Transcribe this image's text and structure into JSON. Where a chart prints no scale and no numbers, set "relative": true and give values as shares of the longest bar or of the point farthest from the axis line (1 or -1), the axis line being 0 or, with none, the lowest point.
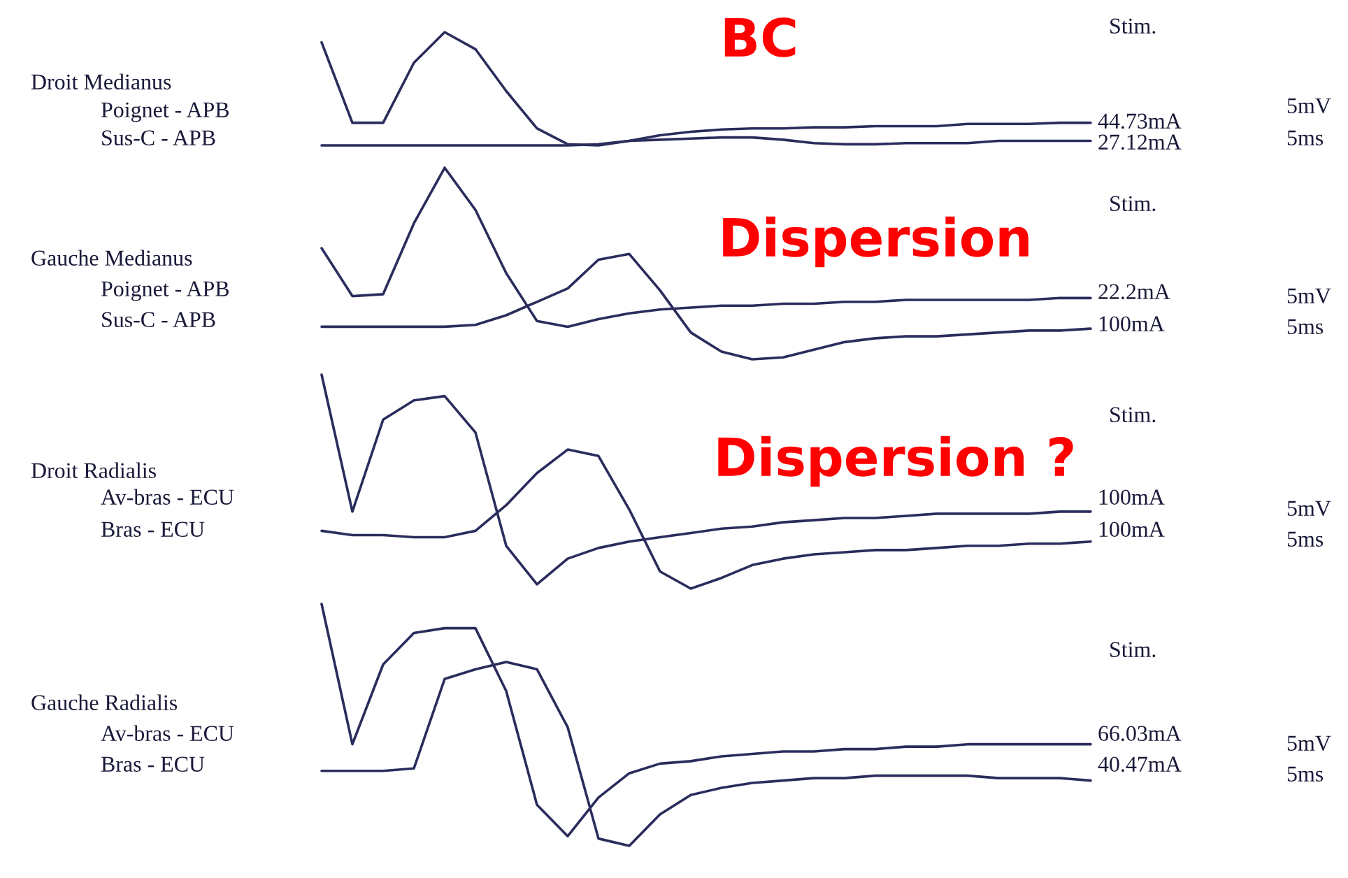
{
  "chart_data": [
    {
      "type": "line",
      "relative": true,
      "categories": [
        null,
        null,
        null,
        null,
        null,
        null,
        null,
        null,
        null,
        null,
        null,
        null,
        null,
        null,
        null,
        null,
        null,
        null,
        null,
        null,
        null,
        null,
        null,
        null,
        null,
        null
      ],
      "series": [
        {
          "color": "#2a2d5c",
          "values": [
            0.91,
            0.2,
            0.2,
            0.73,
            1,
            0.85,
            0.48,
            0.15,
            0.01,
            0,
            0.04,
            0.05,
            0.06,
            0.07,
            0.07,
            0.05,
            0.02,
            0.01,
            0.01,
            0.02,
            0.02,
            0.02,
            0.04,
            0.04,
            0.04,
            0.04
          ]
        },
        {
          "color": "#2a2d5c",
          "values": [
            0,
            0,
            0,
            0,
            0,
            0,
            0,
            0,
            0,
            0.01,
            0.04,
            0.09,
            0.12,
            0.14,
            0.15,
            0.15,
            0.16,
            0.16,
            0.17,
            0.17,
            0.17,
            0.19,
            0.19,
            0.19,
            0.2,
            0.2
          ]
        }
      ],
      "annotations": [
        "Droit Medianus",
        "Poignet - APB",
        "Sus-C - APB",
        "BC",
        "Stim.",
        "44.73mA",
        "27.12mA",
        "5mV",
        "5ms"
      ]
    },
    {
      "type": "line",
      "relative": true,
      "categories": [
        null,
        null,
        null,
        null,
        null,
        null,
        null,
        null,
        null,
        null,
        null,
        null,
        null,
        null,
        null,
        null,
        null,
        null,
        null,
        null,
        null,
        null,
        null,
        null,
        null,
        null
      ],
      "series": [
        {
          "color": "#2a2d5c",
          "values": [
            0.58,
            0.33,
            0.34,
            0.71,
            1,
            0.78,
            0.45,
            0.2,
            0.17,
            0.21,
            0.24,
            0.26,
            0.27,
            0.28,
            0.28,
            0.29,
            0.29,
            0.3,
            0.3,
            0.31,
            0.31,
            0.31,
            0.31,
            0.31,
            0.32,
            0.32
          ]
        },
        {
          "color": "#2a2d5c",
          "values": [
            0.17,
            0.17,
            0.17,
            0.17,
            0.17,
            0.18,
            0.23,
            0.3,
            0.37,
            0.52,
            0.55,
            0.36,
            0.14,
            0.04,
            0,
            0.01,
            0.05,
            0.09,
            0.11,
            0.12,
            0.12,
            0.13,
            0.14,
            0.15,
            0.15,
            0.16
          ]
        }
      ],
      "annotations": [
        "Gauche Medianus",
        "Poignet - APB",
        "Sus-C - APB",
        "Dispersion",
        "Stim.",
        "22.2mA",
        "100mA",
        "5mV",
        "5ms"
      ]
    },
    {
      "type": "line",
      "relative": true,
      "categories": [
        null,
        null,
        null,
        null,
        null,
        null,
        null,
        null,
        null,
        null,
        null,
        null,
        null,
        null,
        null,
        null,
        null,
        null,
        null,
        null,
        null,
        null,
        null,
        null,
        null,
        null
      ],
      "series": [
        {
          "color": "#2a2d5c",
          "values": [
            1,
            0.36,
            0.79,
            0.88,
            0.9,
            0.73,
            0.2,
            0.02,
            0.14,
            0.19,
            0.22,
            0.24,
            0.26,
            0.28,
            0.29,
            0.31,
            0.32,
            0.33,
            0.33,
            0.34,
            0.35,
            0.35,
            0.35,
            0.35,
            0.36,
            0.36
          ]
        },
        {
          "color": "#2a2d5c",
          "values": [
            0.27,
            0.25,
            0.25,
            0.24,
            0.24,
            0.27,
            0.39,
            0.54,
            0.65,
            0.62,
            0.37,
            0.08,
            0,
            0.05,
            0.11,
            0.14,
            0.16,
            0.17,
            0.18,
            0.18,
            0.19,
            0.2,
            0.2,
            0.21,
            0.21,
            0.22
          ]
        }
      ],
      "annotations": [
        "Droit Radialis",
        "Av-bras - ECU",
        "Bras - ECU",
        "Dispersion ?",
        "Stim.",
        "100mA",
        "100mA",
        "5mV",
        "5ms"
      ]
    },
    {
      "type": "line",
      "relative": true,
      "categories": [
        null,
        null,
        null,
        null,
        null,
        null,
        null,
        null,
        null,
        null,
        null,
        null,
        null,
        null,
        null,
        null,
        null,
        null,
        null,
        null,
        null,
        null,
        null,
        null,
        null,
        null
      ],
      "series": [
        {
          "color": "#2a2d5c",
          "values": [
            1,
            0.42,
            0.75,
            0.88,
            0.9,
            0.9,
            0.64,
            0.17,
            0.04,
            0.2,
            0.3,
            0.34,
            0.35,
            0.37,
            0.38,
            0.39,
            0.39,
            0.4,
            0.4,
            0.41,
            0.41,
            0.42,
            0.42,
            0.42,
            0.42,
            0.42
          ]
        },
        {
          "color": "#2a2d5c",
          "values": [
            0.31,
            0.31,
            0.31,
            0.32,
            0.69,
            0.73,
            0.76,
            0.73,
            0.49,
            0.03,
            0,
            0.13,
            0.21,
            0.24,
            0.26,
            0.27,
            0.28,
            0.28,
            0.29,
            0.29,
            0.29,
            0.29,
            0.28,
            0.28,
            0.28,
            0.27
          ]
        }
      ],
      "annotations": [
        "Gauche Radialis",
        "Av-bras - ECU",
        "Bras - ECU",
        "Stim.",
        "66.03mA",
        "40.47mA",
        "5mV",
        "5ms"
      ]
    }
  ]
}
